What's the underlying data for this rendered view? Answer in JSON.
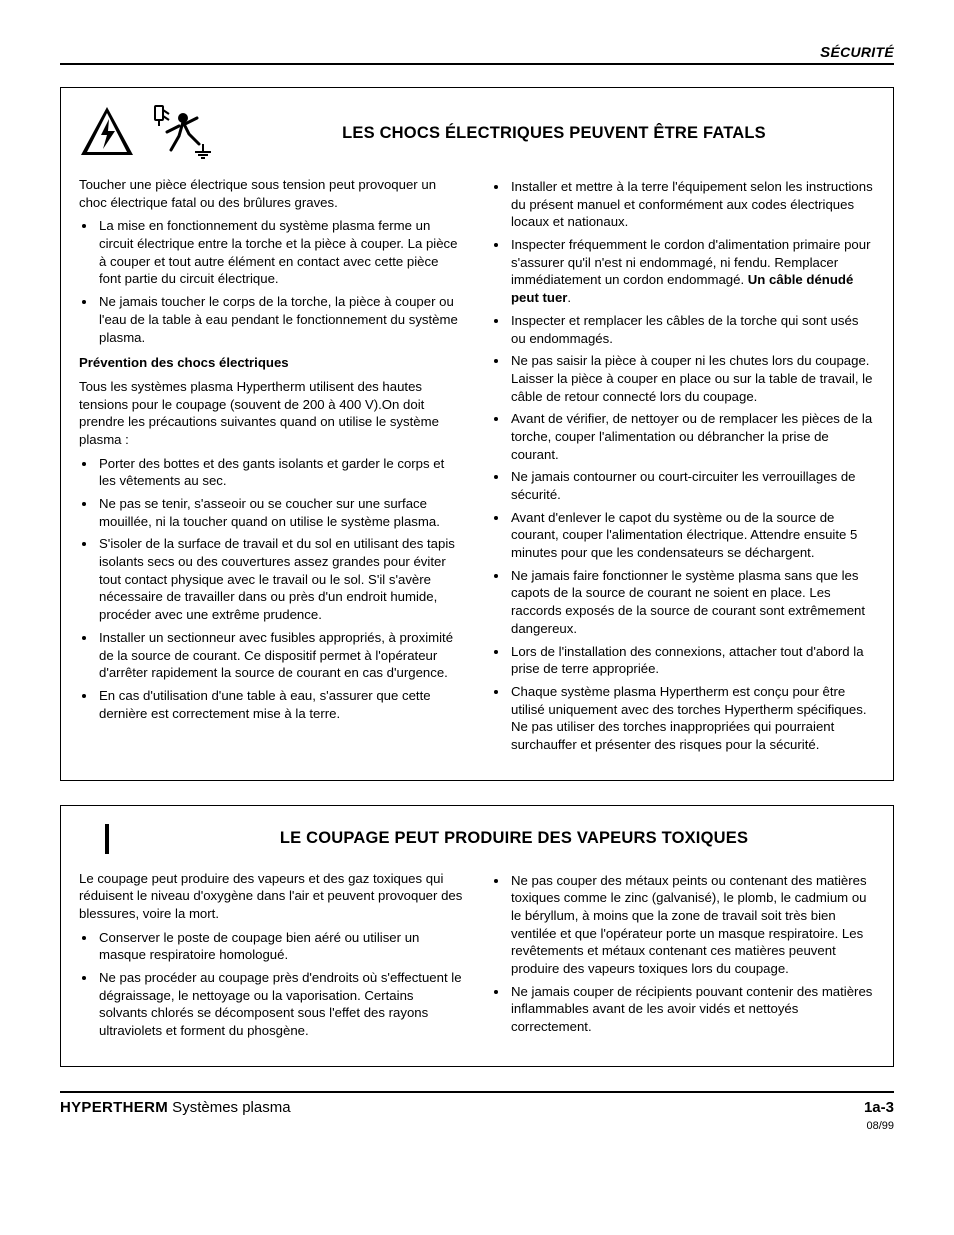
{
  "page": {
    "section_label": "SÉCURITÉ",
    "footer_brand": "HYPERTHERM",
    "footer_product": " Systèmes plasma",
    "page_number": "1a-3",
    "date": "08/99",
    "text_color": "#000000",
    "background_color": "#ffffff",
    "rule_color": "#000000",
    "body_font_size_pt": 10,
    "heading_font_size_pt": 12
  },
  "box1": {
    "heading": "LES CHOCS ÉLECTRIQUES PEUVENT ÊTRE FATALS",
    "icon1_name": "electric-shock-warning-icon",
    "icon2_name": "person-shock-hazard-icon",
    "left": {
      "intro": "Toucher une pièce électrique sous tension peut provoquer un choc électrique fatal ou des brûlures graves.",
      "bullets1": [
        "La mise en fonctionnement du système plasma ferme un circuit électrique entre la torche et la pièce à couper. La pièce à couper et tout autre élément en contact avec cette pièce font partie du circuit électrique.",
        "Ne jamais toucher le corps de la torche, la pièce à couper ou l'eau de la table à eau pendant le fonctionnement du système plasma."
      ],
      "subhead": "Prévention des chocs électriques",
      "subhead_text": "Tous les systèmes plasma Hypertherm utilisent des hautes tensions pour le coupage (souvent de 200 à 400 V).On doit prendre les précautions suivantes quand on utilise le système plasma :",
      "bullets2": [
        "Porter des bottes et des gants isolants et garder le corps et les vêtements au sec.",
        "Ne pas se tenir, s'asseoir ou se coucher sur une surface mouillée, ni la toucher quand on utilise le système plasma.",
        "S'isoler de la surface de travail et du sol en utilisant des tapis isolants secs ou des couvertures assez grandes pour éviter tout contact physique avec le travail ou le sol. S'il s'avère nécessaire de travailler dans ou près d'un endroit humide, procéder avec une extrême prudence.",
        "Installer un sectionneur avec fusibles appropriés, à proximité de la source de courant. Ce dispositif permet à l'opérateur d'arrêter rapidement la source de courant en cas d'urgence.",
        "En cas d'utilisation d'une table à eau, s'assurer que cette dernière est correctement mise à la terre."
      ]
    },
    "right": {
      "bullets": [
        {
          "pre": "Installer et mettre à la terre l'équipement selon les instructions du présent manuel et conformément aux codes électriques locaux et nationaux."
        },
        {
          "pre": "Inspecter fréquemment le cordon d'alimentation primaire pour s'assurer qu'il n'est ni endommagé, ni fendu. Remplacer immédiatement un cordon endommagé. ",
          "bold": "Un câble dénudé peut tuer",
          "post": "."
        },
        {
          "pre": "Inspecter et remplacer les câbles de la torche qui sont usés ou endommagés."
        },
        {
          "pre": "Ne pas saisir la pièce à couper ni les chutes lors du coupage. Laisser la pièce à couper en place ou sur la table de travail, le câble de retour connecté lors du coupage."
        },
        {
          "pre": "Avant de vérifier, de nettoyer ou de remplacer les pièces de la torche, couper l'alimentation ou débrancher la prise de courant."
        },
        {
          "pre": "Ne jamais contourner ou court-circuiter les verrouillages de sécurité."
        },
        {
          "pre": "Avant d'enlever le capot du système ou de la source de courant, couper l'alimentation électrique. Attendre ensuite 5 minutes pour que les condensateurs se déchargent."
        },
        {
          "pre": "Ne jamais faire fonctionner le système plasma sans que les capots de la source de courant ne soient en place. Les raccords exposés de la source de courant sont extrêmement dangereux."
        },
        {
          "pre": "Lors de l'installation des connexions, attacher tout d'abord la prise de terre appropriée."
        },
        {
          "pre": "Chaque système plasma Hypertherm est conçu pour être utilisé uniquement avec des torches Hypertherm spécifiques. Ne pas utiliser des torches inappropriées qui pourraient surchauffer et présenter des risques pour la sécurité."
        }
      ]
    }
  },
  "box2": {
    "heading": "LE COUPAGE PEUT PRODUIRE DES VAPEURS TOXIQUES",
    "icon_name": "toxic-fumes-icon",
    "left": {
      "intro": "Le coupage peut produire des vapeurs et des gaz toxiques qui réduisent le niveau d'oxygène dans l'air et peuvent provoquer des blessures, voire la mort.",
      "bullets": [
        "Conserver le poste de coupage bien aéré ou utiliser un masque respiratoire homologué.",
        "Ne pas procéder au coupage près d'endroits où s'effectuent le dégraissage, le nettoyage ou la vaporisation. Certains solvants chlorés se décomposent sous l'effet des rayons ultraviolets et forment du phosgène."
      ]
    },
    "right": {
      "bullets": [
        "Ne pas couper des métaux peints ou contenant des matières toxiques comme le zinc (galvanisé), le plomb, le cadmium ou le béryllum, à moins que la zone de travail soit très bien ventilée et que l'opérateur porte un masque respiratoire. Les revêtements et métaux contenant ces matières peuvent produire des vapeurs toxiques lors du coupage.",
        "Ne jamais couper de récipients pouvant contenir des matières inflammables avant de les avoir vidés et nettoyés correctement."
      ]
    }
  }
}
